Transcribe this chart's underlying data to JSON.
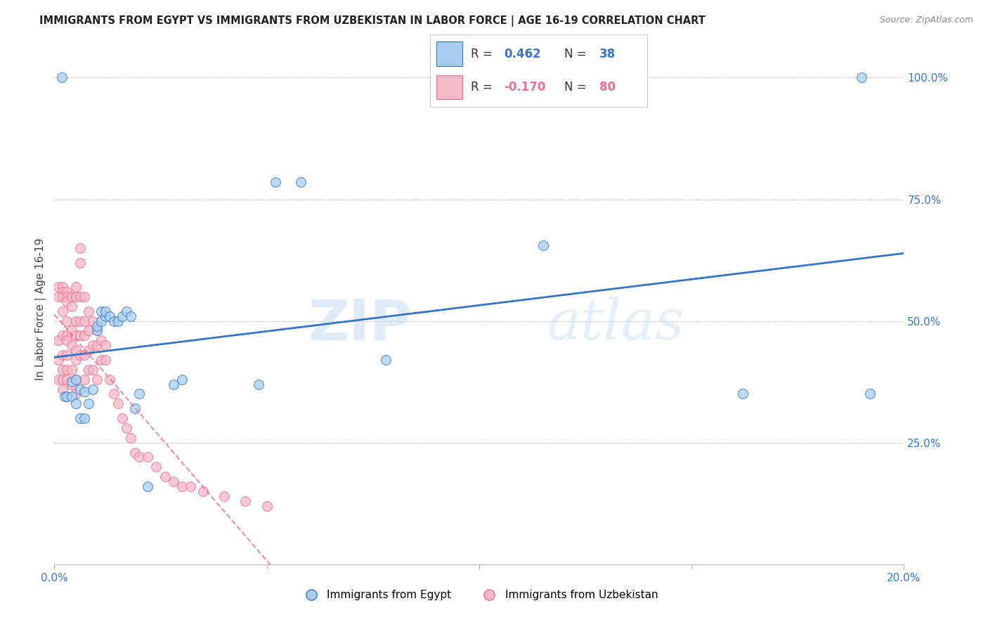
{
  "title": "IMMIGRANTS FROM EGYPT VS IMMIGRANTS FROM UZBEKISTAN IN LABOR FORCE | AGE 16-19 CORRELATION CHART",
  "source": "Source: ZipAtlas.com",
  "ylabel": "In Labor Force | Age 16-19",
  "legend_label_1": "Immigrants from Egypt",
  "legend_label_2": "Immigrants from Uzbekistan",
  "r1": 0.462,
  "n1": 38,
  "r2": -0.17,
  "n2": 80,
  "color_egypt": "#A8CEF0",
  "color_uzbekistan": "#F5B8C8",
  "color_egypt_line": "#3575C8",
  "color_uzbekistan_line": "#E87090",
  "xlim": [
    0.0,
    0.2
  ],
  "ylim": [
    0.0,
    1.05
  ],
  "egypt_x": [
    0.0017,
    0.0025,
    0.003,
    0.004,
    0.004,
    0.005,
    0.005,
    0.006,
    0.006,
    0.007,
    0.007,
    0.008,
    0.009,
    0.01,
    0.01,
    0.011,
    0.011,
    0.012,
    0.012,
    0.013,
    0.014,
    0.015,
    0.016,
    0.017,
    0.018,
    0.019,
    0.02,
    0.022,
    0.028,
    0.03,
    0.048,
    0.052,
    0.058,
    0.078,
    0.115,
    0.162,
    0.19,
    0.192
  ],
  "egypt_y": [
    1.0,
    0.345,
    0.345,
    0.375,
    0.345,
    0.38,
    0.33,
    0.36,
    0.3,
    0.355,
    0.3,
    0.33,
    0.36,
    0.48,
    0.49,
    0.5,
    0.52,
    0.51,
    0.52,
    0.51,
    0.5,
    0.5,
    0.51,
    0.52,
    0.51,
    0.32,
    0.35,
    0.16,
    0.37,
    0.38,
    0.37,
    0.785,
    0.785,
    0.42,
    0.655,
    0.35,
    1.0,
    0.35
  ],
  "uzbekistan_x": [
    0.001,
    0.001,
    0.001,
    0.001,
    0.001,
    0.002,
    0.002,
    0.002,
    0.002,
    0.002,
    0.002,
    0.002,
    0.002,
    0.002,
    0.003,
    0.003,
    0.003,
    0.003,
    0.003,
    0.003,
    0.003,
    0.003,
    0.003,
    0.004,
    0.004,
    0.004,
    0.004,
    0.004,
    0.004,
    0.005,
    0.005,
    0.005,
    0.005,
    0.005,
    0.005,
    0.005,
    0.005,
    0.006,
    0.006,
    0.006,
    0.006,
    0.006,
    0.006,
    0.007,
    0.007,
    0.007,
    0.007,
    0.007,
    0.008,
    0.008,
    0.008,
    0.008,
    0.009,
    0.009,
    0.009,
    0.01,
    0.01,
    0.01,
    0.011,
    0.011,
    0.012,
    0.012,
    0.013,
    0.014,
    0.015,
    0.016,
    0.017,
    0.018,
    0.019,
    0.02,
    0.022,
    0.024,
    0.026,
    0.028,
    0.03,
    0.032,
    0.035,
    0.04,
    0.045,
    0.05
  ],
  "uzbekistan_y": [
    0.57,
    0.55,
    0.46,
    0.42,
    0.38,
    0.57,
    0.56,
    0.55,
    0.52,
    0.47,
    0.43,
    0.4,
    0.38,
    0.36,
    0.56,
    0.55,
    0.54,
    0.5,
    0.47,
    0.46,
    0.43,
    0.4,
    0.38,
    0.55,
    0.53,
    0.48,
    0.45,
    0.4,
    0.37,
    0.57,
    0.55,
    0.5,
    0.47,
    0.44,
    0.42,
    0.38,
    0.35,
    0.65,
    0.62,
    0.55,
    0.5,
    0.47,
    0.43,
    0.55,
    0.5,
    0.47,
    0.43,
    0.38,
    0.52,
    0.48,
    0.44,
    0.4,
    0.5,
    0.45,
    0.4,
    0.48,
    0.45,
    0.38,
    0.46,
    0.42,
    0.45,
    0.42,
    0.38,
    0.35,
    0.33,
    0.3,
    0.28,
    0.26,
    0.23,
    0.22,
    0.22,
    0.2,
    0.18,
    0.17,
    0.16,
    0.16,
    0.15,
    0.14,
    0.13,
    0.12
  ],
  "watermark_zip": "ZIP",
  "watermark_atlas": "atlas",
  "background_color": "#FFFFFF",
  "grid_color": "#CCCCCC",
  "title_color": "#222222",
  "source_color": "#888888",
  "axis_color": "#3575C8",
  "label_color": "#444444"
}
